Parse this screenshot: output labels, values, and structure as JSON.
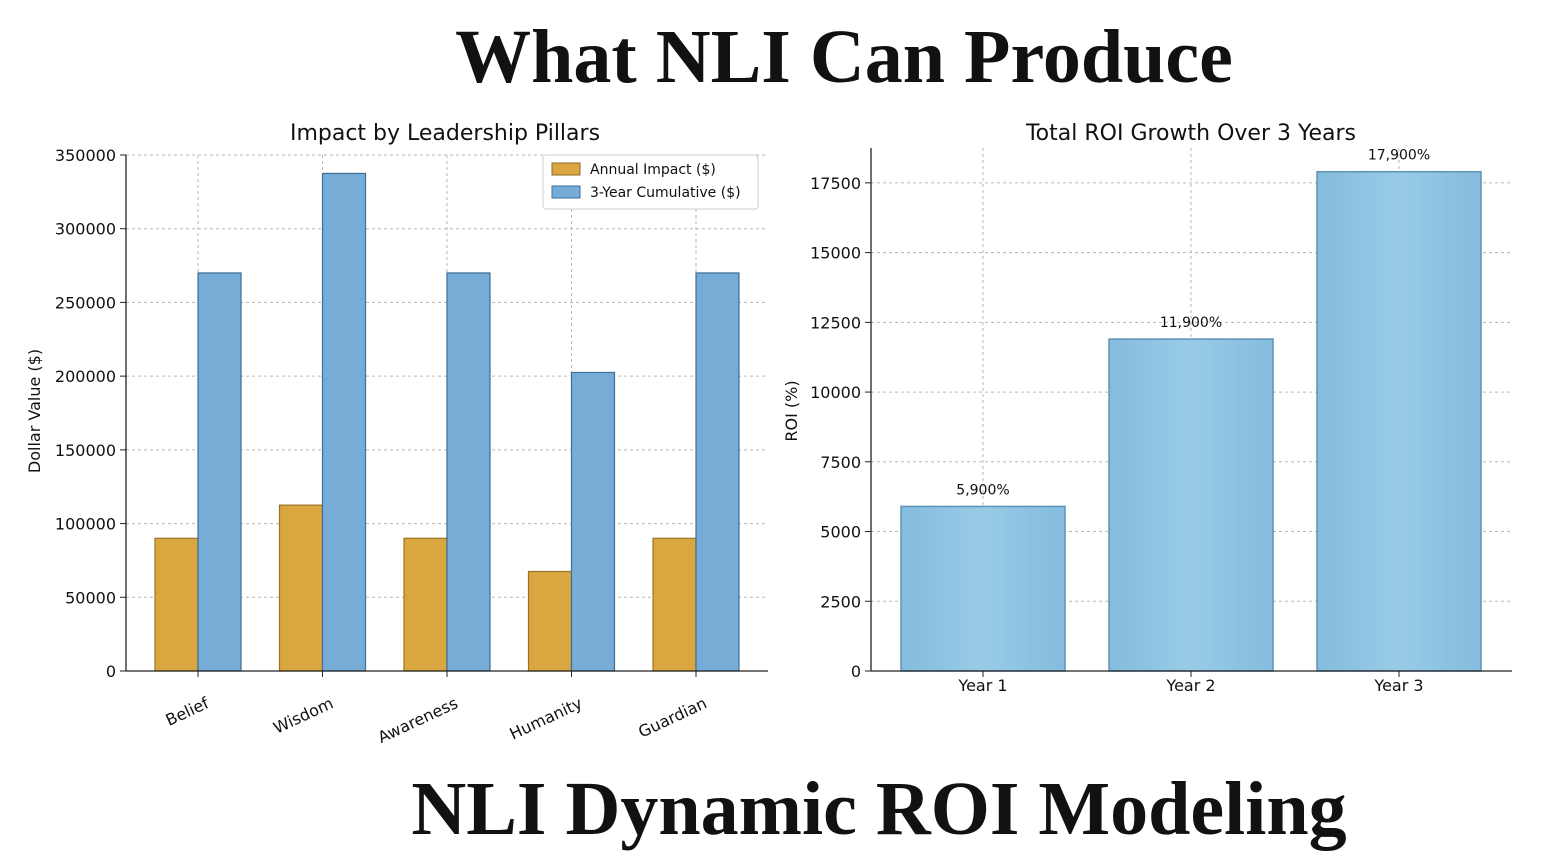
{
  "headline_top": "What NLI Can Produce",
  "headline_bottom": "NLI Dynamic ROI Modeling",
  "chart_data": [
    {
      "type": "bar",
      "title": "Impact by Leadership Pillars",
      "xlabel": "",
      "ylabel": "Dollar Value ($)",
      "categories": [
        "Belief",
        "Wisdom",
        "Awareness",
        "Humanity",
        "Guardian"
      ],
      "series": [
        {
          "name": "Annual Impact ($)",
          "values": [
            90000,
            112500,
            90000,
            67500,
            90000
          ],
          "color": "#d9a640"
        },
        {
          "name": "3-Year Cumulative ($)",
          "values": [
            270000,
            337500,
            270000,
            202500,
            270000
          ],
          "color": "#76acd6"
        }
      ],
      "ylim": [
        0,
        350000
      ],
      "yticks": [
        0,
        50000,
        100000,
        150000,
        200000,
        250000,
        300000,
        350000
      ],
      "ytick_labels": [
        "0",
        "50000",
        "100000",
        "150000",
        "200000",
        "250000",
        "300000",
        "350000"
      ],
      "grid": true,
      "legend": "top-right"
    },
    {
      "type": "bar",
      "title": "Total ROI Growth Over 3 Years",
      "xlabel": "",
      "ylabel": "ROI (%)",
      "categories": [
        "Year 1",
        "Year 2",
        "Year 3"
      ],
      "values": [
        5900,
        11900,
        17900
      ],
      "data_labels": [
        "5,900%",
        "11,900%",
        "17,900%"
      ],
      "color": "#8ec4e3",
      "ylim": [
        0,
        18750
      ],
      "yticks": [
        0,
        2500,
        5000,
        7500,
        10000,
        12500,
        15000,
        17500
      ],
      "ytick_labels": [
        "0",
        "2500",
        "5000",
        "7500",
        "10000",
        "12500",
        "15000",
        "17500"
      ],
      "grid": true
    }
  ]
}
